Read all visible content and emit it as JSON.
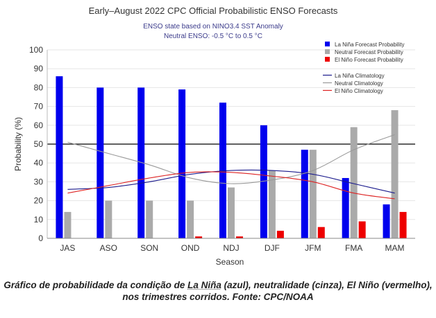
{
  "colors": {
    "la_nina": "#0000ee",
    "neutral": "#aaaaaa",
    "el_nino": "#ee0000",
    "la_nina_clim": "#1a1a8c",
    "neutral_clim": "#999999",
    "el_nino_clim": "#dd2222",
    "subtitle": "#3a3a8a"
  },
  "chart_data": {
    "type": "bar",
    "title": "Early–August 2022 CPC Official Probabilistic ENSO Forecasts",
    "subtitle_lines": [
      "ENSO state based on NINO3.4 SST Anomaly",
      "Neutral ENSO: -0.5 °C to 0.5 °C"
    ],
    "xlabel": "Season",
    "ylabel": "Probability (%)",
    "ylim": [
      0,
      100
    ],
    "yticks": [
      0,
      10,
      20,
      30,
      40,
      50,
      60,
      70,
      80,
      90,
      100
    ],
    "reference_line": 50,
    "grid": true,
    "legend_position": "top-right",
    "categories": [
      "JAS",
      "ASO",
      "SON",
      "OND",
      "NDJ",
      "DJF",
      "JFM",
      "FMA",
      "MAM"
    ],
    "series": [
      {
        "name": "La Niña Forecast Probability",
        "kind": "bar",
        "color_key": "la_nina",
        "values": [
          86,
          80,
          80,
          79,
          72,
          60,
          47,
          32,
          18
        ]
      },
      {
        "name": "Neutral Forecast Probability",
        "kind": "bar",
        "color_key": "neutral",
        "values": [
          14,
          20,
          20,
          20,
          27,
          36,
          47,
          59,
          68
        ]
      },
      {
        "name": "El Niño Forecast Probability",
        "kind": "bar",
        "color_key": "el_nino",
        "values": [
          0,
          0,
          0,
          1,
          1,
          4,
          6,
          9,
          14
        ]
      },
      {
        "name": "La Niña Climatology",
        "kind": "line",
        "color_key": "la_nina_clim",
        "values": [
          26,
          27,
          30,
          34,
          36,
          36,
          34,
          29,
          24
        ]
      },
      {
        "name": "Neutral Climatology",
        "kind": "line",
        "color_key": "neutral_clim",
        "values": [
          51,
          45,
          39,
          32,
          29,
          31,
          36,
          47,
          55
        ]
      },
      {
        "name": "El Niño Climatology",
        "kind": "line",
        "color_key": "el_nino_clim",
        "values": [
          24,
          28,
          32,
          35,
          35,
          33,
          30,
          24,
          21
        ]
      }
    ]
  },
  "caption": {
    "pre": "Gráfico de probabilidade da condição de ",
    "la_nina": "La Niña",
    "post": " (azul), neutralidade (cinza), El Niño (vermelho), nos trimestres corridos. Fonte: CPC/NOAA"
  }
}
